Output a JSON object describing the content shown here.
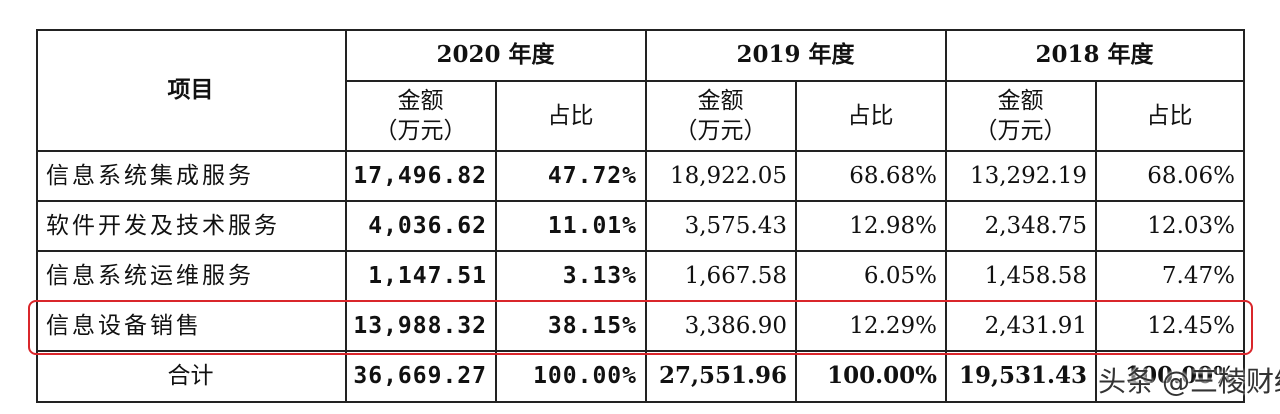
{
  "table": {
    "header": {
      "item": "项目",
      "years": [
        "2020 年度",
        "2019 年度",
        "2018 年度"
      ],
      "amount": "金额",
      "unit": "（万元）",
      "share": "占比"
    },
    "rows": [
      [
        "信息系统集成服务",
        "17,496.82",
        "47.72%",
        "18,922.05",
        "68.68%",
        "13,292.19",
        "68.06%"
      ],
      [
        "软件开发及技术服务",
        "4,036.62",
        "11.01%",
        "3,575.43",
        "12.98%",
        "2,348.75",
        "12.03%"
      ],
      [
        "信息系统运维服务",
        "1,147.51",
        "3.13%",
        "1,667.58",
        "6.05%",
        "1,458.58",
        "7.47%"
      ],
      [
        "信息设备销售",
        "13,988.32",
        "38.15%",
        "3,386.90",
        "12.29%",
        "2,431.91",
        "12.45%"
      ],
      [
        "合计",
        "36,669.27",
        "100.00%",
        "27,551.96",
        "100.00%",
        "19,531.43",
        "100.00%"
      ]
    ]
  },
  "watermark": {
    "platform": "头条",
    "account": "@三棱财经"
  }
}
